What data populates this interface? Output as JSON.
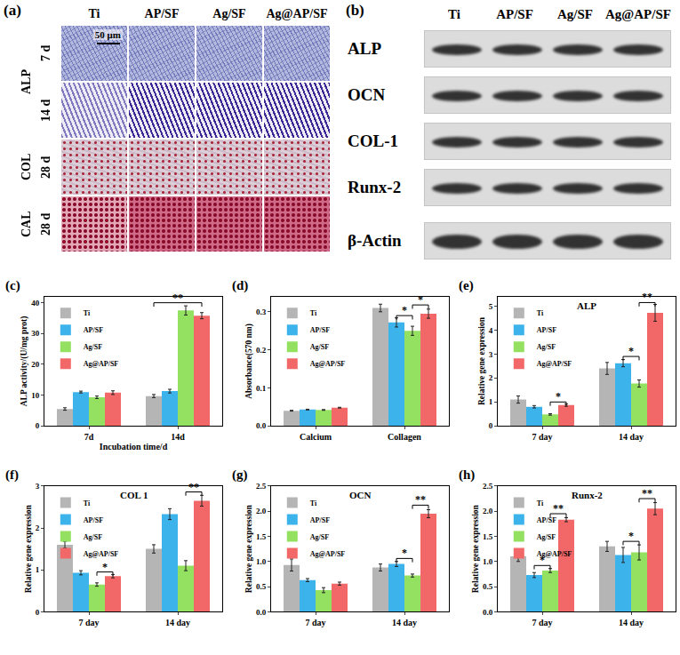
{
  "micrographs": {
    "panel": "(a)",
    "columns": [
      "Ti",
      "AP/SF",
      "Ag/SF",
      "Ag@AP/SF"
    ],
    "groups": [
      {
        "stain": "ALP",
        "times": [
          "7 d",
          "14 d"
        ]
      },
      {
        "stain": "COL",
        "times": [
          "28 d"
        ]
      },
      {
        "stain": "CAL",
        "times": [
          "28 d"
        ]
      }
    ],
    "scale_bar": "50 μm"
  },
  "western_blot": {
    "panel": "(b)",
    "columns": [
      "Ti",
      "AP/SF",
      "Ag/SF",
      "Ag@AP/SF"
    ],
    "rows": [
      "ALP",
      "OCN",
      "COL-1",
      "Runx-2",
      "β-Actin"
    ]
  },
  "chart_data": [
    {
      "panel": "(c)",
      "type": "bar",
      "x_label": "Incubation time/d",
      "y_label": "ALP activity/(U/mg prot)",
      "categories": [
        "7d",
        "14d"
      ],
      "ylim": [
        0,
        42
      ],
      "yticks": [
        0,
        10,
        20,
        30,
        40
      ],
      "legend": "upper left",
      "series": [
        {
          "name": "Ti",
          "color": "#b5b5b5",
          "values": [
            5.5,
            9.7
          ],
          "errors": [
            0.4,
            0.5
          ]
        },
        {
          "name": "AP/SF",
          "color": "#3db3ec",
          "values": [
            11,
            11.3
          ],
          "errors": [
            0.3,
            0.6
          ]
        },
        {
          "name": "Ag/SF",
          "color": "#94e060",
          "values": [
            9.3,
            37.5
          ],
          "errors": [
            0.4,
            1.5
          ]
        },
        {
          "name": "Ag@AP/SF",
          "color": "#f26868",
          "values": [
            10.8,
            35.8
          ],
          "errors": [
            0.6,
            1.0
          ]
        }
      ],
      "annotations": [
        {
          "text": "**",
          "category": "14d",
          "series": [
            "Ti",
            "Ag@AP/SF"
          ],
          "y": 40
        }
      ]
    },
    {
      "panel": "(d)",
      "type": "bar",
      "y_label": "Absorbance(570 nm)",
      "categories": [
        "Calcium",
        "Collagen"
      ],
      "ylim": [
        0,
        0.34
      ],
      "yticks": [
        {
          "value": 0,
          "label": "0.0"
        },
        0.1,
        0.2,
        0.3
      ],
      "legend": "upper left",
      "series": [
        {
          "name": "Ti",
          "color": "#b5b5b5",
          "values": [
            0.04,
            0.31
          ],
          "errors": [
            0.001,
            0.01
          ]
        },
        {
          "name": "AP/SF",
          "color": "#3db3ec",
          "values": [
            0.043,
            0.272
          ],
          "errors": [
            0.001,
            0.012
          ]
        },
        {
          "name": "Ag/SF",
          "color": "#94e060",
          "values": [
            0.042,
            0.25
          ],
          "errors": [
            0.001,
            0.012
          ]
        },
        {
          "name": "Ag@AP/SF",
          "color": "#f26868",
          "values": [
            0.048,
            0.295
          ],
          "errors": [
            0.001,
            0.012
          ]
        }
      ],
      "annotations": [
        {
          "text": "*",
          "category": "Collagen",
          "series": [
            "AP/SF",
            "Ag/SF"
          ],
          "y": 0.29
        },
        {
          "text": "*",
          "category": "Collagen",
          "series": [
            "Ag/SF",
            "Ag@AP/SF"
          ],
          "y": 0.318
        }
      ]
    },
    {
      "panel": "(e)",
      "type": "bar",
      "title": "ALP",
      "y_label": "Relative gene expression",
      "categories": [
        "7 day",
        "14 day"
      ],
      "ylim": [
        0,
        5.4
      ],
      "yticks": [
        0,
        1,
        2,
        3,
        4,
        5
      ],
      "legend": "upper left",
      "series": [
        {
          "name": "Ti",
          "color": "#b5b5b5",
          "values": [
            1.1,
            2.4
          ],
          "errors": [
            0.15,
            0.25
          ]
        },
        {
          "name": "AP/SF",
          "color": "#3db3ec",
          "values": [
            0.8,
            2.62
          ],
          "errors": [
            0.05,
            0.15
          ]
        },
        {
          "name": "Ag/SF",
          "color": "#94e060",
          "values": [
            0.48,
            1.77
          ],
          "errors": [
            0.03,
            0.15
          ]
        },
        {
          "name": "Ag@AP/SF",
          "color": "#f26868",
          "values": [
            0.87,
            4.72
          ],
          "errors": [
            0.05,
            0.35
          ]
        }
      ],
      "annotations": [
        {
          "text": "*",
          "category": "7 day",
          "series": [
            "Ag/SF",
            "Ag@AP/SF"
          ],
          "y": 1.0
        },
        {
          "text": "*",
          "category": "14 day",
          "series": [
            "AP/SF",
            "Ag/SF"
          ],
          "y": 2.9
        },
        {
          "text": "**",
          "category": "14 day",
          "series": [
            "Ag/SF",
            "Ag@AP/SF"
          ],
          "y": 5.15
        }
      ]
    },
    {
      "panel": "(f)",
      "type": "bar",
      "title": "COL 1",
      "y_label": "Relative gene expression",
      "categories": [
        "7 day",
        "14 day"
      ],
      "ylim": [
        0,
        3
      ],
      "yticks": [
        0,
        1,
        2,
        3
      ],
      "legend": "upper left",
      "series": [
        {
          "name": "Ti",
          "color": "#b5b5b5",
          "values": [
            1.6,
            1.5
          ],
          "errors": [
            0.08,
            0.1
          ]
        },
        {
          "name": "AP/SF",
          "color": "#3db3ec",
          "values": [
            0.93,
            2.33
          ],
          "errors": [
            0.05,
            0.13
          ]
        },
        {
          "name": "Ag/SF",
          "color": "#94e060",
          "values": [
            0.65,
            1.1
          ],
          "errors": [
            0.04,
            0.12
          ]
        },
        {
          "name": "Ag@AP/SF",
          "color": "#f26868",
          "values": [
            0.85,
            2.65
          ],
          "errors": [
            0.04,
            0.13
          ]
        }
      ],
      "annotations": [
        {
          "text": "*",
          "category": "7 day",
          "series": [
            "Ag/SF",
            "Ag@AP/SF"
          ],
          "y": 0.95
        },
        {
          "text": "**",
          "category": "14 day",
          "series": [
            "Ag/SF",
            "Ag@AP/SF"
          ],
          "y": 2.86
        }
      ]
    },
    {
      "panel": "(g)",
      "type": "bar",
      "title": "OCN",
      "y_label": "Relative gene expression",
      "categories": [
        "7 day",
        "14 day"
      ],
      "ylim": [
        0,
        2.5
      ],
      "yticks": [
        {
          "value": 0,
          "label": "0.0"
        },
        0.5,
        {
          "value": 1,
          "label": "1.0"
        },
        1.5,
        {
          "value": 2,
          "label": "2.0"
        },
        2.5
      ],
      "legend": "upper left",
      "series": [
        {
          "name": "Ti",
          "color": "#b5b5b5",
          "values": [
            0.93,
            0.88
          ],
          "errors": [
            0.12,
            0.07
          ]
        },
        {
          "name": "AP/SF",
          "color": "#3db3ec",
          "values": [
            0.63,
            0.95
          ],
          "errors": [
            0.03,
            0.05
          ]
        },
        {
          "name": "Ag/SF",
          "color": "#94e060",
          "values": [
            0.43,
            0.72
          ],
          "errors": [
            0.05,
            0.03
          ]
        },
        {
          "name": "Ag@AP/SF",
          "color": "#f26868",
          "values": [
            0.56,
            1.95
          ],
          "errors": [
            0.03,
            0.08
          ]
        }
      ],
      "annotations": [
        {
          "text": "*",
          "category": "14 day",
          "series": [
            "AP/SF",
            "Ag/SF"
          ],
          "y": 1.06
        },
        {
          "text": "**",
          "category": "14 day",
          "series": [
            "Ag/SF",
            "Ag@AP/SF"
          ],
          "y": 2.12
        }
      ]
    },
    {
      "panel": "(h)",
      "type": "bar",
      "title": "Runx-2",
      "y_label": "Relative gene expression",
      "categories": [
        "7 day",
        "14 day"
      ],
      "ylim": [
        0,
        2.5
      ],
      "yticks": [
        {
          "value": 0,
          "label": "0.0"
        },
        0.5,
        {
          "value": 1,
          "label": "1.0"
        },
        1.5,
        {
          "value": 2,
          "label": "2.0"
        },
        2.5
      ],
      "legend": "upper left",
      "series": [
        {
          "name": "Ti",
          "color": "#b5b5b5",
          "values": [
            1.1,
            1.3
          ],
          "errors": [
            0.1,
            0.1
          ]
        },
        {
          "name": "AP/SF",
          "color": "#3db3ec",
          "values": [
            0.73,
            1.13
          ],
          "errors": [
            0.05,
            0.15
          ]
        },
        {
          "name": "Ag/SF",
          "color": "#94e060",
          "values": [
            0.82,
            1.18
          ],
          "errors": [
            0.04,
            0.15
          ]
        },
        {
          "name": "Ag@AP/SF",
          "color": "#f26868",
          "values": [
            1.83,
            2.05
          ],
          "errors": [
            0.04,
            0.12
          ]
        }
      ],
      "annotations": [
        {
          "text": "*",
          "category": "7 day",
          "series": [
            "AP/SF",
            "Ag/SF"
          ],
          "y": 0.92
        },
        {
          "text": "**",
          "category": "7 day",
          "series": [
            "Ag/SF",
            "Ag@AP/SF"
          ],
          "y": 1.95
        },
        {
          "text": "*",
          "category": "14 day",
          "series": [
            "AP/SF",
            "Ag/SF"
          ],
          "y": 1.4
        },
        {
          "text": "**",
          "category": "14 day",
          "series": [
            "Ag/SF",
            "Ag@AP/SF"
          ],
          "y": 2.25
        }
      ]
    }
  ]
}
